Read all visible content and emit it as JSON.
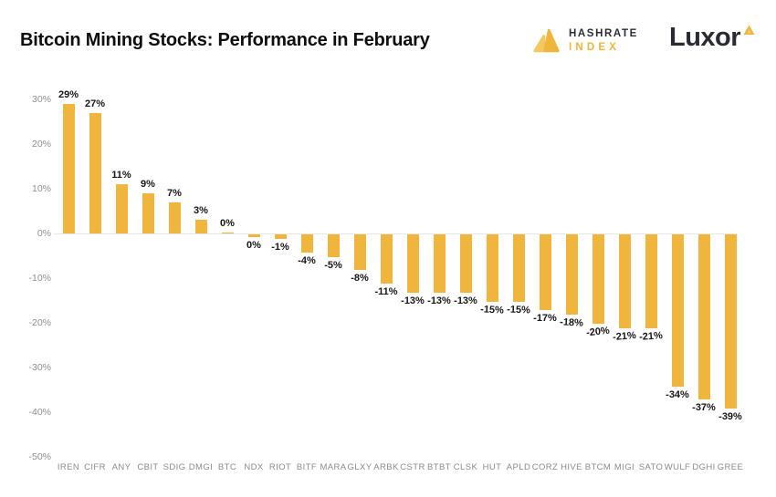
{
  "header": {
    "title": "Bitcoin Mining Stocks: Performance in February"
  },
  "logos": {
    "hashrate": {
      "line1": "HASHRATE",
      "line2": "INDEX"
    },
    "luxor": {
      "text": "Luxor"
    }
  },
  "colors": {
    "bar": "#efb53d",
    "gold_light": "#f4c85d",
    "logo_dark": "#2d2d35",
    "axis_line": "#e8e8e3",
    "ytick_text": "#8f8f8f",
    "xtick_text": "#8b8b8b",
    "value_text": "#161616"
  },
  "chart_data": {
    "type": "bar",
    "title": "Bitcoin Mining Stocks: Performance in February",
    "xlabel": "",
    "ylabel": "",
    "ylim": [
      -50,
      30
    ],
    "ytick_step": 10,
    "ytick_labels": [
      "30%",
      "20%",
      "10%",
      "0%",
      "-10%",
      "-20%",
      "-30%",
      "-40%",
      "-50%"
    ],
    "grid": false,
    "legend": null,
    "zero_baseline": true,
    "categories": [
      "IREN",
      "CIFR",
      "ANY",
      "CBIT",
      "SDIG",
      "DMGI",
      "BTC",
      "NDX",
      "RIOT",
      "BITF",
      "MARA",
      "GLXY",
      "ARBK",
      "CSTR",
      "BTBT",
      "CLSK",
      "HUT",
      "APLD",
      "CORZ",
      "HIVE",
      "BTCM",
      "MIGI",
      "SATO",
      "WULF",
      "DGHI",
      "GREE"
    ],
    "values": [
      29,
      27,
      11,
      9,
      7,
      3,
      0,
      0,
      -1,
      -4,
      -5,
      -8,
      -11,
      -13,
      -13,
      -13,
      -15,
      -15,
      -17,
      -18,
      -20,
      -21,
      -21,
      -34,
      -37,
      -39
    ],
    "value_labels": [
      "29%",
      "27%",
      "11%",
      "9%",
      "7%",
      "3%",
      "0%",
      "0%",
      "-1%",
      "-4%",
      "-5%",
      "-8%",
      "-11%",
      "-13%",
      "-13%",
      "-13%",
      "-15%",
      "-15%",
      "-17%",
      "-18%",
      "-20%",
      "-21%",
      "-21%",
      "-34%",
      "-37%",
      "-39%"
    ],
    "label_positions": [
      "above",
      "above",
      "above",
      "above",
      "above",
      "above",
      "above",
      "below",
      "below",
      "below",
      "below",
      "below",
      "below",
      "below",
      "below",
      "below",
      "below",
      "below",
      "below",
      "below",
      "below",
      "below",
      "below",
      "below",
      "below",
      "below"
    ]
  }
}
